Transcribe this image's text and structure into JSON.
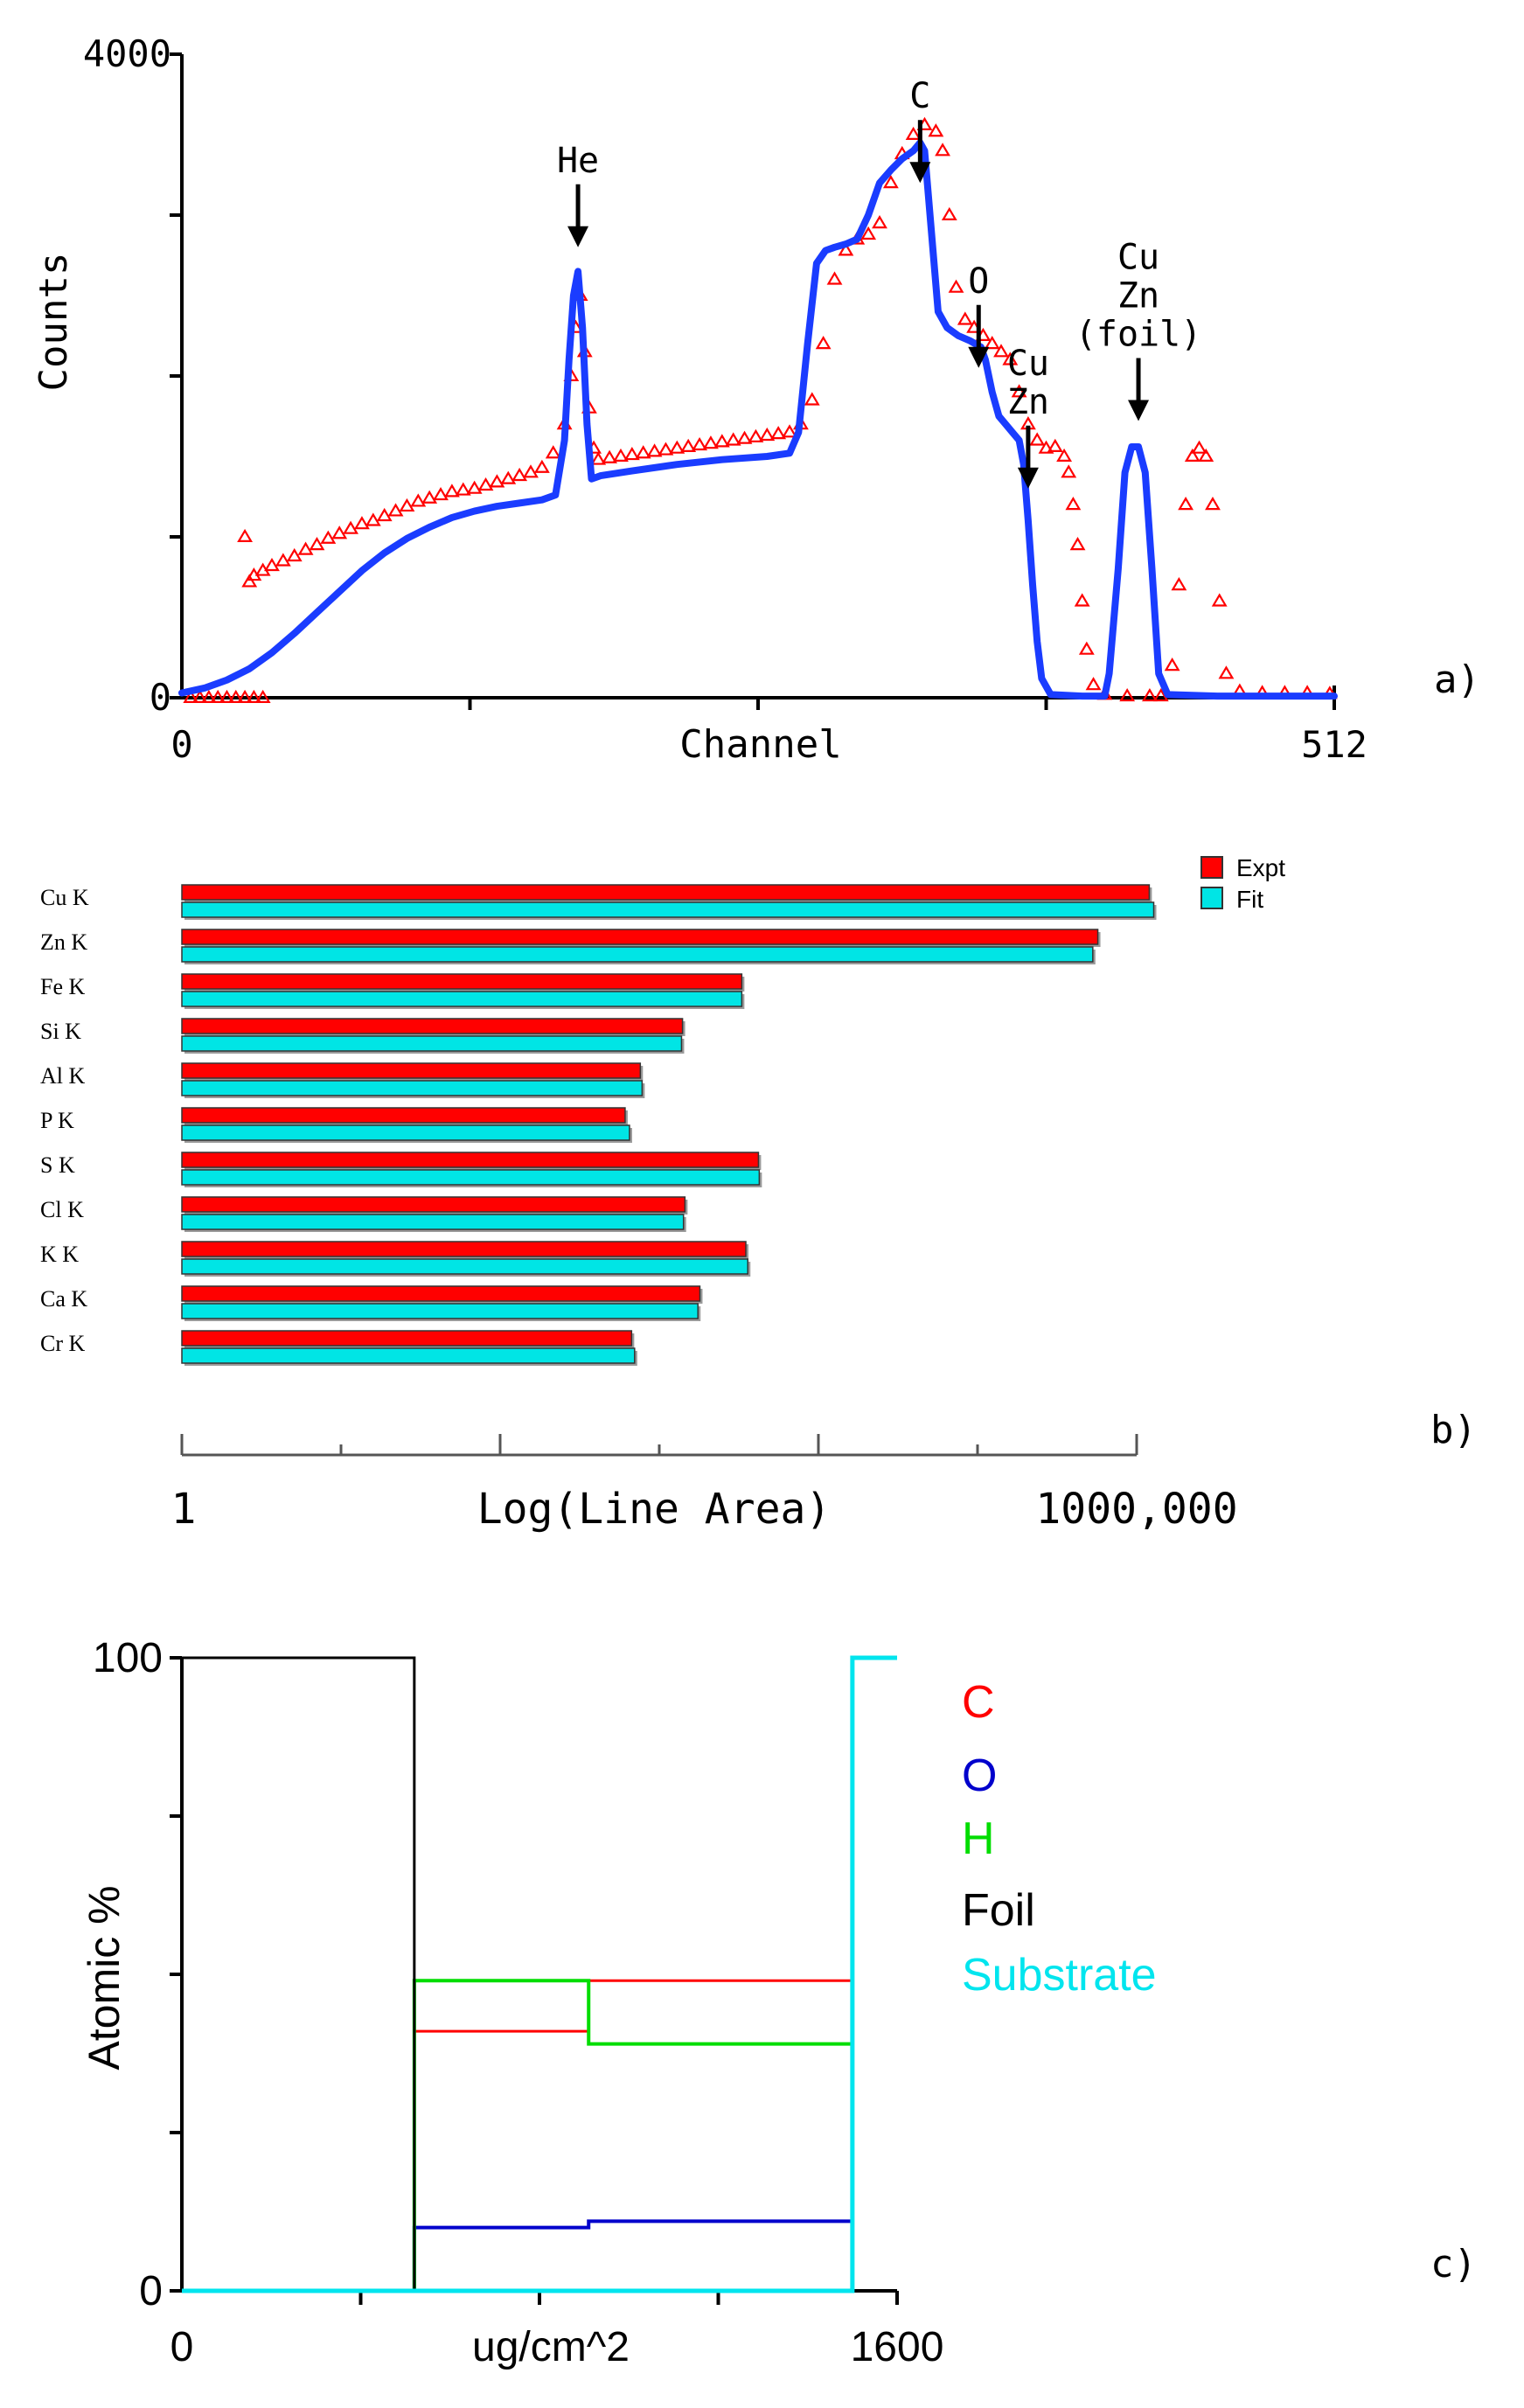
{
  "colors": {
    "expt": "#ff0000",
    "fit": "#1a3cff",
    "bar_fit": "#00e5e5",
    "axis": "#000000",
    "C": "#ff0000",
    "O": "#0000cc",
    "H": "#00dd00",
    "Foil": "#000000",
    "Substrate": "#00e5ee"
  },
  "chart_data": [
    {
      "id": "a",
      "type": "scatter",
      "panel_label": "a)",
      "title": "",
      "xlabel": "Channel",
      "ylabel": "Counts",
      "xlim": [
        0,
        512
      ],
      "ylim": [
        0,
        4000
      ],
      "x_tick_labels": [
        "0",
        "512"
      ],
      "y_tick_labels": [
        "0",
        "4000"
      ],
      "series": [
        {
          "name": "Expt",
          "marker": "triangle",
          "points": [
            [
              4,
              0
            ],
            [
              8,
              0
            ],
            [
              12,
              0
            ],
            [
              16,
              0
            ],
            [
              20,
              0
            ],
            [
              24,
              0
            ],
            [
              28,
              0
            ],
            [
              32,
              0
            ],
            [
              36,
              0
            ],
            [
              28,
              1000
            ],
            [
              30,
              720
            ],
            [
              32,
              760
            ],
            [
              36,
              790
            ],
            [
              40,
              820
            ],
            [
              45,
              850
            ],
            [
              50,
              880
            ],
            [
              55,
              920
            ],
            [
              60,
              950
            ],
            [
              65,
              990
            ],
            [
              70,
              1020
            ],
            [
              75,
              1050
            ],
            [
              80,
              1080
            ],
            [
              85,
              1100
            ],
            [
              90,
              1130
            ],
            [
              95,
              1160
            ],
            [
              100,
              1190
            ],
            [
              105,
              1220
            ],
            [
              110,
              1240
            ],
            [
              115,
              1260
            ],
            [
              120,
              1280
            ],
            [
              125,
              1290
            ],
            [
              130,
              1300
            ],
            [
              135,
              1320
            ],
            [
              140,
              1340
            ],
            [
              145,
              1360
            ],
            [
              150,
              1380
            ],
            [
              155,
              1400
            ],
            [
              160,
              1430
            ],
            [
              165,
              1520
            ],
            [
              170,
              1700
            ],
            [
              173,
              2000
            ],
            [
              175,
              2300
            ],
            [
              177,
              2500
            ],
            [
              179,
              2150
            ],
            [
              181,
              1800
            ],
            [
              183,
              1550
            ],
            [
              185,
              1480
            ],
            [
              190,
              1490
            ],
            [
              195,
              1500
            ],
            [
              200,
              1510
            ],
            [
              205,
              1520
            ],
            [
              210,
              1530
            ],
            [
              215,
              1540
            ],
            [
              220,
              1550
            ],
            [
              225,
              1560
            ],
            [
              230,
              1570
            ],
            [
              235,
              1580
            ],
            [
              240,
              1590
            ],
            [
              245,
              1600
            ],
            [
              250,
              1610
            ],
            [
              255,
              1620
            ],
            [
              260,
              1630
            ],
            [
              265,
              1640
            ],
            [
              270,
              1650
            ],
            [
              275,
              1700
            ],
            [
              280,
              1850
            ],
            [
              285,
              2200
            ],
            [
              290,
              2600
            ],
            [
              295,
              2780
            ],
            [
              300,
              2850
            ],
            [
              305,
              2880
            ],
            [
              310,
              2950
            ],
            [
              315,
              3200
            ],
            [
              320,
              3380
            ],
            [
              325,
              3500
            ],
            [
              330,
              3560
            ],
            [
              335,
              3520
            ],
            [
              338,
              3400
            ],
            [
              341,
              3000
            ],
            [
              344,
              2550
            ],
            [
              348,
              2350
            ],
            [
              352,
              2300
            ],
            [
              356,
              2250
            ],
            [
              360,
              2200
            ],
            [
              364,
              2150
            ],
            [
              368,
              2100
            ],
            [
              372,
              1900
            ],
            [
              376,
              1700
            ],
            [
              380,
              1600
            ],
            [
              384,
              1550
            ],
            [
              388,
              1560
            ],
            [
              392,
              1500
            ],
            [
              394,
              1400
            ],
            [
              396,
              1200
            ],
            [
              398,
              950
            ],
            [
              400,
              600
            ],
            [
              402,
              300
            ],
            [
              405,
              80
            ],
            [
              410,
              20
            ],
            [
              420,
              10
            ],
            [
              430,
              10
            ],
            [
              435,
              10
            ],
            [
              440,
              200
            ],
            [
              443,
              700
            ],
            [
              446,
              1200
            ],
            [
              449,
              1500
            ],
            [
              452,
              1550
            ],
            [
              455,
              1500
            ],
            [
              458,
              1200
            ],
            [
              461,
              600
            ],
            [
              464,
              150
            ],
            [
              470,
              40
            ],
            [
              480,
              30
            ],
            [
              490,
              30
            ],
            [
              500,
              30
            ],
            [
              510,
              25
            ]
          ]
        },
        {
          "name": "Fit",
          "points": [
            [
              0,
              30
            ],
            [
              10,
              60
            ],
            [
              20,
              110
            ],
            [
              30,
              180
            ],
            [
              40,
              280
            ],
            [
              50,
              400
            ],
            [
              60,
              530
            ],
            [
              70,
              660
            ],
            [
              80,
              790
            ],
            [
              90,
              900
            ],
            [
              100,
              990
            ],
            [
              110,
              1060
            ],
            [
              120,
              1120
            ],
            [
              130,
              1160
            ],
            [
              140,
              1190
            ],
            [
              150,
              1210
            ],
            [
              160,
              1230
            ],
            [
              166,
              1260
            ],
            [
              170,
              1600
            ],
            [
              172,
              2100
            ],
            [
              174,
              2500
            ],
            [
              176,
              2650
            ],
            [
              178,
              2300
            ],
            [
              180,
              1700
            ],
            [
              182,
              1360
            ],
            [
              186,
              1380
            ],
            [
              200,
              1410
            ],
            [
              220,
              1450
            ],
            [
              240,
              1480
            ],
            [
              260,
              1500
            ],
            [
              270,
              1520
            ],
            [
              274,
              1650
            ],
            [
              278,
              2200
            ],
            [
              282,
              2700
            ],
            [
              286,
              2780
            ],
            [
              290,
              2800
            ],
            [
              295,
              2820
            ],
            [
              300,
              2850
            ],
            [
              305,
              3000
            ],
            [
              310,
              3200
            ],
            [
              315,
              3280
            ],
            [
              320,
              3350
            ],
            [
              325,
              3400
            ],
            [
              328,
              3450
            ],
            [
              330,
              3400
            ],
            [
              333,
              2900
            ],
            [
              336,
              2400
            ],
            [
              340,
              2300
            ],
            [
              345,
              2250
            ],
            [
              350,
              2220
            ],
            [
              355,
              2180
            ],
            [
              357,
              2100
            ],
            [
              360,
              1900
            ],
            [
              363,
              1750
            ],
            [
              366,
              1700
            ],
            [
              369,
              1650
            ],
            [
              372,
              1600
            ],
            [
              374,
              1450
            ],
            [
              376,
              1100
            ],
            [
              378,
              700
            ],
            [
              380,
              350
            ],
            [
              382,
              120
            ],
            [
              386,
              20
            ],
            [
              400,
              10
            ],
            [
              410,
              10
            ],
            [
              412,
              150
            ],
            [
              416,
              800
            ],
            [
              419,
              1400
            ],
            [
              422,
              1560
            ],
            [
              425,
              1560
            ],
            [
              428,
              1400
            ],
            [
              431,
              800
            ],
            [
              434,
              150
            ],
            [
              438,
              20
            ],
            [
              460,
              10
            ],
            [
              500,
              10
            ],
            [
              512,
              10
            ]
          ]
        }
      ],
      "annotations": [
        {
          "lines": [
            "He"
          ],
          "arrow_to_x": 176,
          "arrow_to_y": 2800
        },
        {
          "lines": [
            "C"
          ],
          "arrow_to_x": 328,
          "arrow_to_y": 3200
        },
        {
          "lines": [
            "O"
          ],
          "arrow_to_x": 354,
          "arrow_to_y": 2050
        },
        {
          "lines": [
            "Cu",
            "Zn"
          ],
          "arrow_to_x": 376,
          "arrow_to_y": 1300
        },
        {
          "lines": [
            "Cu",
            "Zn",
            "(foil)"
          ],
          "arrow_to_x": 425,
          "arrow_to_y": 1720
        }
      ]
    },
    {
      "id": "b",
      "type": "bar",
      "orientation": "horizontal",
      "panel_label": "b)",
      "xlabel": "Log(Line Area)",
      "x_scale": "log",
      "xlim": [
        1,
        1000000
      ],
      "x_tick_labels": [
        "1",
        "1000,000"
      ],
      "categories": [
        "Cu K",
        "Zn K",
        "Fe K",
        "Si K",
        "Al K",
        "P K",
        "S K",
        "Cl K",
        "K K",
        "Ca K",
        "Cr K"
      ],
      "series": [
        {
          "name": "Expt",
          "values": [
            1200000,
            570000,
            3300,
            1400,
            760,
            610,
            4200,
            1450,
            3500,
            1800,
            670
          ]
        },
        {
          "name": "Fit",
          "values": [
            1280000,
            530000,
            3300,
            1380,
            780,
            650,
            4250,
            1420,
            3600,
            1750,
            700
          ]
        }
      ],
      "legend": {
        "placement": "top-right",
        "labels": [
          "Expt",
          "Fit"
        ]
      }
    },
    {
      "id": "c",
      "type": "line",
      "panel_label": "c)",
      "xlabel": "ug/cm^2",
      "ylabel": "Atomic %",
      "xlim": [
        0,
        1600
      ],
      "ylim": [
        0,
        100
      ],
      "x_tick_labels": [
        "0",
        "1600"
      ],
      "y_tick_labels": [
        "0",
        "100"
      ],
      "series": [
        {
          "name": "C",
          "points": [
            [
              520,
              0
            ],
            [
              520,
              41
            ],
            [
              910,
              41
            ],
            [
              910,
              49
            ],
            [
              1500,
              49
            ],
            [
              1500,
              0
            ]
          ]
        },
        {
          "name": "O",
          "points": [
            [
              520,
              0
            ],
            [
              520,
              10
            ],
            [
              910,
              10
            ],
            [
              910,
              11
            ],
            [
              1500,
              11
            ],
            [
              1500,
              0
            ]
          ]
        },
        {
          "name": "H",
          "points": [
            [
              520,
              0
            ],
            [
              520,
              49
            ],
            [
              910,
              49
            ],
            [
              910,
              39
            ],
            [
              1500,
              39
            ],
            [
              1500,
              0
            ]
          ]
        },
        {
          "name": "Foil",
          "points": [
            [
              0,
              100
            ],
            [
              520,
              100
            ],
            [
              520,
              0
            ]
          ]
        },
        {
          "name": "Substrate",
          "points": [
            [
              0,
              0
            ],
            [
              1500,
              0
            ],
            [
              1500,
              100
            ],
            [
              1600,
              100
            ]
          ]
        }
      ],
      "legend": {
        "placement": "top-right",
        "labels": [
          "C",
          "O",
          "H",
          "Foil",
          "Substrate"
        ]
      }
    }
  ]
}
